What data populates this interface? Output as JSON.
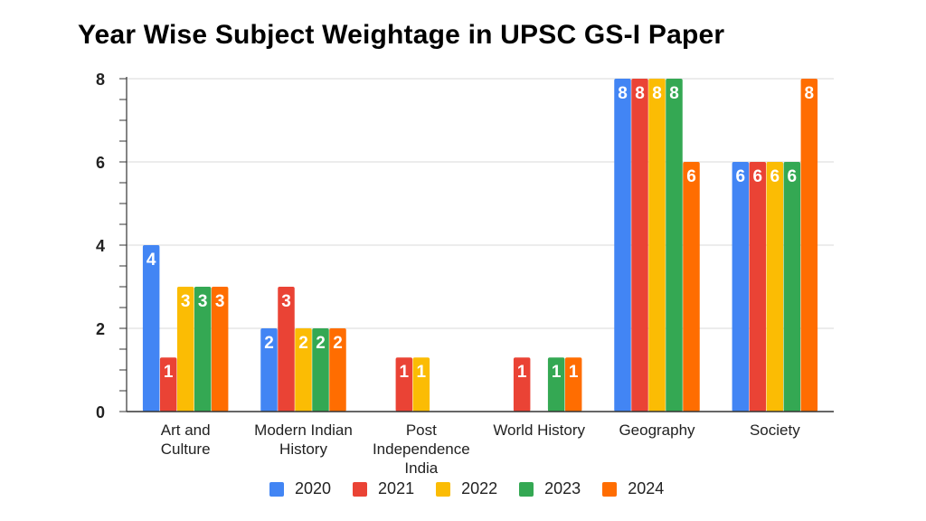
{
  "chart_data": {
    "type": "bar",
    "title": "Year Wise Subject Weightage in UPSC GS-I Paper",
    "xlabel": "",
    "ylabel": "",
    "ylim": [
      0,
      8
    ],
    "yticks": [
      0,
      2,
      4,
      6,
      8
    ],
    "categories": [
      [
        "Art and",
        "Culture"
      ],
      [
        "Modern Indian",
        "History"
      ],
      [
        "Post",
        "Independence",
        "India"
      ],
      [
        "World History"
      ],
      [
        "Geography"
      ],
      [
        "Society"
      ]
    ],
    "series": [
      {
        "name": "2020",
        "color": "#4285F4",
        "values": [
          4,
          2,
          null,
          null,
          8,
          6
        ]
      },
      {
        "name": "2021",
        "color": "#EA4335",
        "values": [
          1,
          3,
          1,
          1,
          8,
          6
        ]
      },
      {
        "name": "2022",
        "color": "#FBBC04",
        "values": [
          3,
          2,
          1,
          null,
          8,
          6
        ]
      },
      {
        "name": "2023",
        "color": "#34A853",
        "values": [
          3,
          2,
          null,
          1,
          8,
          6
        ]
      },
      {
        "name": "2024",
        "color": "#FF6D01",
        "values": [
          3,
          2,
          null,
          1,
          6,
          8
        ]
      }
    ],
    "data_label_offset_for_small_values": 1.3,
    "grid": true,
    "legend_position": "bottom"
  }
}
